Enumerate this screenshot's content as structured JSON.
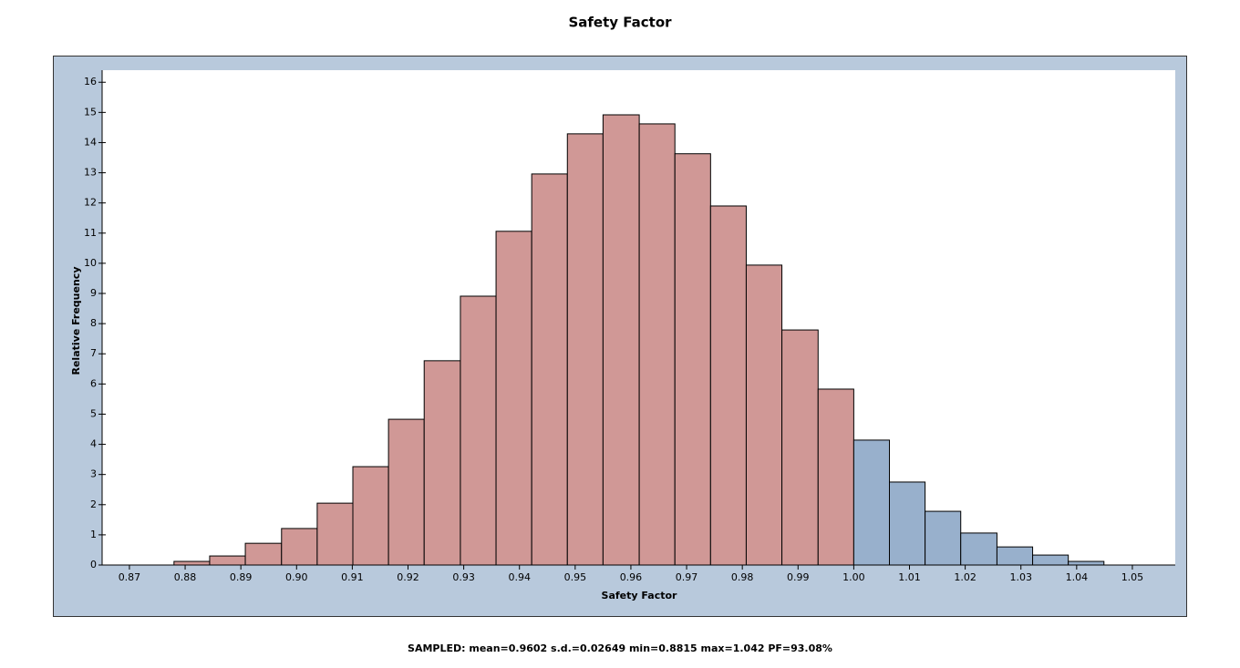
{
  "chart_data": {
    "type": "histogram",
    "title": "Safety Factor",
    "x_label": "Safety Factor",
    "y_label": "Relative Frequency",
    "footnote": "SAMPLED: mean=0.9602 s.d.=0.02649 min=0.8815 max=1.042 PF=93.08%",
    "bins": [
      0.878,
      0.8844,
      0.8908,
      0.8973,
      0.9037,
      0.9101,
      0.9165,
      0.9229,
      0.9294,
      0.9358,
      0.9422,
      0.9486,
      0.955,
      0.9615,
      0.9679,
      0.9743,
      0.9807,
      0.9871,
      0.9936,
      1.0,
      1.0064,
      1.0128,
      1.0192,
      1.0257,
      1.0321,
      1.0385,
      1.0449
    ],
    "values": [
      0.12,
      0.3,
      0.72,
      1.21,
      2.05,
      3.26,
      4.83,
      6.77,
      8.91,
      11.06,
      12.96,
      14.29,
      14.92,
      14.62,
      13.63,
      11.9,
      9.94,
      7.79,
      5.83,
      4.14,
      2.75,
      1.78,
      1.06,
      0.6,
      0.33,
      0.12
    ],
    "colors": [
      "#d09896",
      "#d09896",
      "#d09896",
      "#d09896",
      "#d09896",
      "#d09896",
      "#d09896",
      "#d09896",
      "#d09896",
      "#d09896",
      "#d09896",
      "#d09896",
      "#d09896",
      "#d09896",
      "#d09896",
      "#d09896",
      "#d09896",
      "#d09896",
      "#d09896",
      "#98b0cc",
      "#98b0cc",
      "#98b0cc",
      "#98b0cc",
      "#98b0cc",
      "#98b0cc",
      "#98b0cc"
    ],
    "xlim": [
      0.8651,
      1.0577
    ],
    "ylim": [
      0,
      16.4
    ],
    "xticks": [
      0.87,
      0.88,
      0.89,
      {
        "value": 0.9,
        "label": "0.90"
      },
      0.91,
      0.92,
      0.93,
      0.94,
      0.95,
      0.96,
      0.97,
      0.98,
      0.99,
      {
        "value": 1,
        "label": "1.00"
      },
      1.01,
      1.02,
      1.03,
      1.04,
      1.05
    ],
    "yticks": [
      0,
      1,
      2,
      3,
      4,
      5,
      6,
      7,
      8,
      9,
      10,
      11,
      12,
      13,
      14,
      15,
      16
    ]
  }
}
